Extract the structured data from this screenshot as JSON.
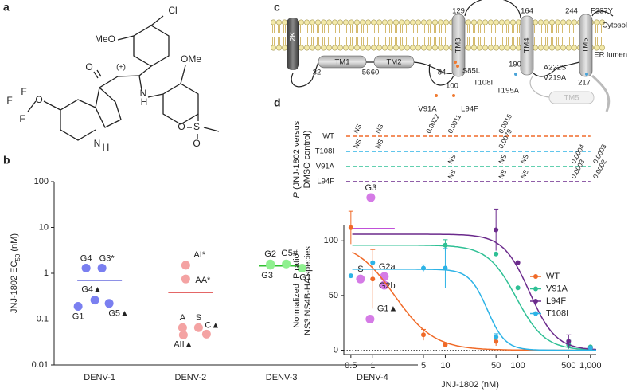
{
  "panel_labels": [
    "a",
    "b",
    "c",
    "d"
  ],
  "structure": {
    "atoms": [
      "Cl",
      "MeO",
      "OMe",
      "O",
      "(+)",
      "N",
      "H",
      "F",
      "F",
      "F",
      "O",
      "N",
      "H",
      "S",
      "O",
      "O"
    ]
  },
  "topology": {
    "compartments": [
      "Cytosol",
      "ER lumen"
    ],
    "segments": [
      "2K",
      "TM1",
      "TM2",
      "TM3",
      "TM4",
      "TM5",
      "TM5"
    ],
    "residues": [
      "129",
      "164",
      "244",
      "F237Y",
      "32",
      "56",
      "60",
      "84",
      "100",
      "S85L",
      "T108I",
      "190",
      "217",
      "A222S",
      "V219A",
      "T195A",
      "V91A",
      "L94F"
    ]
  },
  "chart_data": [
    {
      "type": "strip",
      "ylabel": [
        "JNJ-1802 EC",
        "50",
        " (nM)"
      ],
      "log_y": true,
      "ylim": [
        0.01,
        100
      ],
      "yticks": [
        0.01,
        0.1,
        1,
        10,
        100
      ],
      "categories": [
        "DENV-1",
        "DENV-2",
        "DENV-3",
        "DENV-4"
      ],
      "series": [
        {
          "color": "#7a7ff0",
          "mean_color": "#4b4fd6",
          "values": [
            1.3,
            1.3,
            0.26,
            0.19,
            0.22
          ],
          "labels": [
            "G4",
            "G3*",
            "G4▲",
            "G1",
            "G5▲"
          ],
          "mean": 0.7
        },
        {
          "color": "#f4a3a3",
          "mean_color": "#e05050",
          "values": [
            1.5,
            0.75,
            0.065,
            0.065,
            0.045,
            0.047
          ],
          "labels": [
            "AI*",
            "AA*",
            "A",
            "S",
            "AII▲",
            "C▲"
          ],
          "mean": 0.38
        },
        {
          "color": "#8ff08f",
          "mean_color": "#33c033",
          "values": [
            1.6,
            1.6,
            1.5,
            1.3
          ],
          "labels": [
            "G2",
            "G5#",
            "G3",
            "G1"
          ],
          "mean": 1.45
        },
        {
          "color": "#d57be6",
          "mean_color": "#c050d8",
          "values": [
            45,
            0.75,
            0.85,
            0.55,
            0.1
          ],
          "labels": [
            "G3",
            "S",
            "G2a",
            "G2b",
            "G1▲"
          ],
          "mean": 9.5
        }
      ]
    },
    {
      "type": "line",
      "log_x": true,
      "xlabel": "JNJ-1802 (nM)",
      "ylabel": [
        "Normalized IP ratio",
        "NS3:NS4B-HA species"
      ],
      "xlim": [
        0.4,
        1200
      ],
      "xticks": [
        0.5,
        1,
        5,
        10,
        50,
        100,
        500,
        {
          "value": 1000,
          "label": "1,000"
        }
      ],
      "ylim": [
        -4,
        114
      ],
      "yticks": [
        0,
        50,
        100
      ],
      "legend": "upper right",
      "x": [
        0.5,
        1,
        5,
        10,
        50,
        100,
        500,
        1000
      ],
      "series": [
        {
          "name": "WT",
          "color": "#f06a28",
          "values": [
            112,
            65,
            14,
            5,
            8,
            null,
            null,
            2
          ],
          "errors": [
            15,
            27,
            5,
            null,
            4,
            null,
            null,
            null
          ],
          "fit": {
            "top": 100,
            "bottom": 0,
            "ec50": 2,
            "hill": 1.6
          }
        },
        {
          "name": "V91A",
          "color": "#2fc095",
          "values": [
            null,
            null,
            null,
            96,
            88,
            57,
            5,
            3
          ],
          "errors": [
            null,
            null,
            null,
            5,
            null,
            null,
            4,
            null
          ],
          "fit": {
            "top": 96,
            "bottom": 0,
            "ec50": 95,
            "hill": 2.2
          }
        },
        {
          "name": "L94F",
          "color": "#6b2a8c",
          "values": [
            null,
            null,
            null,
            null,
            110,
            80,
            8,
            2
          ],
          "errors": [
            null,
            null,
            null,
            null,
            19,
            null,
            6,
            null
          ],
          "fit": {
            "top": 106,
            "bottom": 0,
            "ec50": 145,
            "hill": 2.4
          }
        },
        {
          "name": "T108I",
          "color": "#2db3e6",
          "values": [
            68,
            80,
            75,
            75,
            12,
            null,
            null,
            2
          ],
          "errors": [
            null,
            null,
            3,
            18,
            3,
            null,
            null,
            null
          ],
          "fit": {
            "top": 74,
            "bottom": 0,
            "ec50": 38,
            "hill": 3.5
          }
        }
      ],
      "pvalues": {
        "ylabel": [
          "P",
          " (JNJ-1802 versus",
          "DMSO control)"
        ],
        "rows": [
          {
            "name": "WT",
            "color": "#f06a28",
            "cells": [
              "NS",
              "NS",
              "0.0022",
              "0.0011",
              "0.0015",
              null,
              null,
              null
            ]
          },
          {
            "name": "T108I",
            "color": "#2db3e6",
            "cells": [
              "NS",
              "NS",
              null,
              null,
              "0.0079",
              null,
              null,
              null
            ]
          },
          {
            "name": "V91A",
            "color": "#2fc095",
            "cells": [
              null,
              null,
              null,
              "NS",
              "NS",
              "NS",
              "0.0004",
              "0.0003"
            ]
          },
          {
            "name": "L94F",
            "color": "#6b2a8c",
            "cells": [
              null,
              null,
              null,
              "NS",
              "NS",
              "NS",
              "0.0003",
              "0.0002"
            ]
          }
        ]
      }
    }
  ]
}
